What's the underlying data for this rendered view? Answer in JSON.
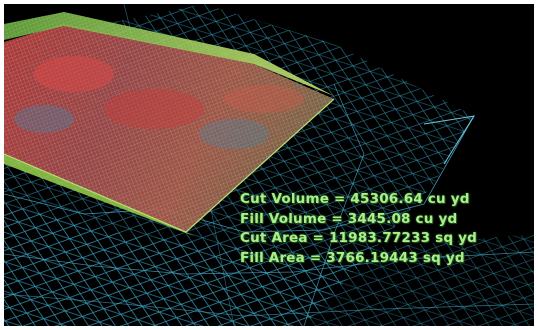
{
  "readout": {
    "cut_volume": "Cut Volume = 45306.64 cu yd",
    "fill_volume": "Fill Volume = 3445.08 cu yd",
    "cut_area": "Cut Area = 11983.77233 sq yd",
    "fill_area": "Fill Area = 3766.19443 sq yd"
  },
  "colors": {
    "background": "#000000",
    "terrain_mesh": "#3aa6c8",
    "cut_surface": "#c0403c",
    "fill_surface": "#8ad24e",
    "readout_text": "#a8f08a"
  }
}
